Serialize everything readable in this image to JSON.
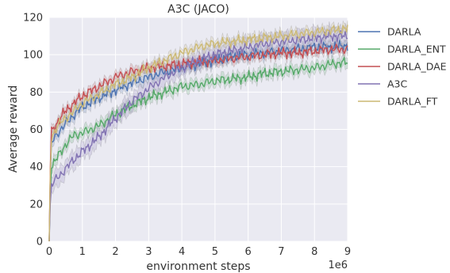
{
  "chart_data": {
    "type": "line",
    "title": "A3C (JACO)",
    "xlabel": "environment steps",
    "ylabel": "Average reward",
    "x_multiplier_label": "1e6",
    "xlim": [
      0,
      9
    ],
    "ylim": [
      0,
      120
    ],
    "xticks": [
      "0",
      "1",
      "2",
      "3",
      "4",
      "5",
      "6",
      "7",
      "8",
      "9"
    ],
    "yticks": [
      "0",
      "20",
      "40",
      "60",
      "80",
      "100",
      "120"
    ],
    "grid": true,
    "legend_position": "outside right, top",
    "background_color": "#eaeaf2",
    "series": [
      {
        "name": "DARLA",
        "color": "#4c72b0",
        "x": [
          0,
          0.05,
          0.25,
          0.5,
          0.75,
          1,
          1.5,
          2,
          2.5,
          3,
          3.5,
          4,
          4.5,
          5,
          5.5,
          6,
          6.5,
          7,
          7.5,
          8,
          8.5,
          9
        ],
        "y": [
          0,
          52,
          58,
          63,
          68,
          72,
          77,
          81,
          85,
          88,
          91,
          93,
          95,
          97,
          99,
          100,
          101,
          102,
          103,
          104,
          104,
          105
        ],
        "band": 3
      },
      {
        "name": "DARLA_ENT",
        "color": "#55a868",
        "x": [
          0,
          0.05,
          0.25,
          0.5,
          0.75,
          1,
          1.5,
          2,
          2.5,
          3,
          3.5,
          4,
          4.5,
          5,
          5.5,
          6,
          6.5,
          7,
          7.5,
          8,
          8.5,
          9
        ],
        "y": [
          0,
          40,
          45,
          52,
          57,
          58,
          62,
          68,
          73,
          77,
          80,
          83,
          84,
          86,
          87,
          88,
          90,
          91,
          92,
          93,
          95,
          96
        ],
        "band": 3
      },
      {
        "name": "DARLA_DAE",
        "color": "#c44e52",
        "x": [
          0,
          0.05,
          0.25,
          0.5,
          0.75,
          1,
          1.5,
          2,
          2.5,
          3,
          3.5,
          4,
          4.5,
          5,
          5.5,
          6,
          6.5,
          7,
          7.5,
          8,
          8.5,
          9
        ],
        "y": [
          0,
          58,
          64,
          70,
          74,
          78,
          83,
          88,
          91,
          93,
          94,
          95,
          96,
          97,
          98,
          99,
          100,
          101,
          101,
          102,
          103,
          103
        ],
        "band": 2.5
      },
      {
        "name": "A3C",
        "color": "#8172b2",
        "x": [
          0,
          0.05,
          0.25,
          0.5,
          0.75,
          1,
          1.5,
          2,
          2.5,
          3,
          3.5,
          4,
          4.5,
          5,
          5.5,
          6,
          6.5,
          7,
          7.5,
          8,
          8.5,
          9
        ],
        "y": [
          0,
          30,
          34,
          39,
          44,
          48,
          56,
          66,
          75,
          82,
          88,
          93,
          97,
          100,
          102,
          104,
          106,
          107,
          108,
          109,
          110,
          110
        ],
        "band": 5
      },
      {
        "name": "DARLA_FT",
        "color": "#ccb974",
        "x": [
          0,
          0.05,
          0.25,
          0.5,
          0.75,
          1,
          1.5,
          2,
          2.5,
          3,
          3.5,
          4,
          4.5,
          5,
          5.5,
          6,
          6.5,
          7,
          7.5,
          8,
          8.5,
          9
        ],
        "y": [
          0,
          55,
          62,
          66,
          70,
          74,
          79,
          84,
          88,
          93,
          97,
          101,
          104,
          106,
          107,
          108,
          109,
          110,
          111,
          112,
          113,
          114
        ],
        "band": 2.5
      }
    ]
  }
}
